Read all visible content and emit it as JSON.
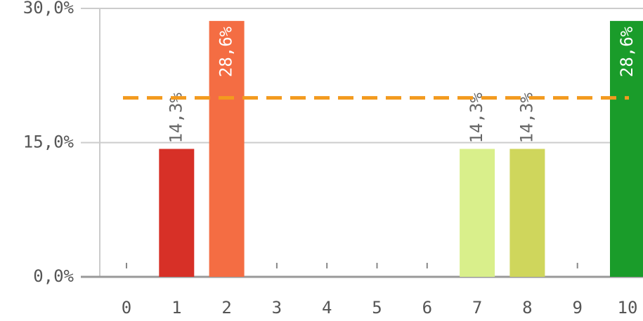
{
  "chart_data": {
    "type": "bar",
    "categories": [
      "0",
      "1",
      "2",
      "3",
      "4",
      "5",
      "6",
      "7",
      "8",
      "9",
      "10"
    ],
    "values": [
      0,
      14.3,
      28.6,
      0,
      0,
      0,
      0,
      14.3,
      14.3,
      0,
      28.6
    ],
    "value_labels": [
      null,
      "14,3%",
      "28,6%",
      null,
      null,
      null,
      null,
      "14,3%",
      "14,3%",
      null,
      "28,6%"
    ],
    "colors": [
      "#a50026",
      "#d73027",
      "#f46d43",
      "#fdae61",
      "#fee08b",
      "#ffffbf",
      "#e6f598",
      "#d9ef8b",
      "#cfd65c",
      "#66bd63",
      "#1a9c2a"
    ],
    "ylim": [
      0,
      30
    ],
    "yticks": [
      {
        "value": 0,
        "label": "0,0%"
      },
      {
        "value": 15,
        "label": "15,0%"
      },
      {
        "value": 30,
        "label": "30,0%"
      }
    ],
    "grid": true,
    "reference_line": 20,
    "reference_color": "#f39a1e"
  }
}
